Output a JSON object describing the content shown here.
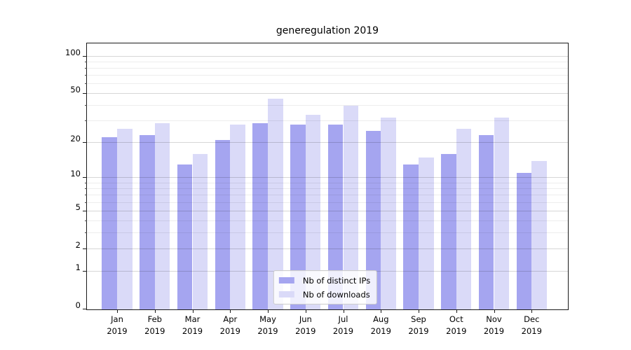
{
  "title": "generegulation 2019",
  "chart_data": {
    "type": "bar",
    "title": "generegulation 2019",
    "categories": [
      "Jan",
      "Feb",
      "Mar",
      "Apr",
      "May",
      "Jun",
      "Jul",
      "Aug",
      "Sep",
      "Oct",
      "Nov",
      "Dec"
    ],
    "category_year": "2019",
    "series": [
      {
        "name": "Nb of distinct IPs",
        "color": "#a5a5f0",
        "values": [
          22,
          23,
          13,
          21,
          29,
          28,
          28,
          25,
          13,
          16,
          23,
          11
        ]
      },
      {
        "name": "Nb of downloads",
        "color": "#dadaf8",
        "values": [
          26,
          29,
          16,
          28,
          46,
          34,
          40,
          32,
          15,
          26,
          32,
          14
        ]
      }
    ],
    "yscale": "log1p",
    "ylim": [
      0,
      127
    ],
    "yticks_major": [
      0,
      1,
      2,
      5,
      10,
      20,
      50,
      100
    ],
    "yticks_minor": [
      3,
      4,
      6,
      7,
      8,
      9,
      30,
      40,
      60,
      70,
      80,
      90
    ],
    "grid": "both",
    "legend_position": "lower center",
    "colors": {
      "grid_major": "rgba(0,0,0,0.16)",
      "grid_minor": "rgba(0,0,0,0.07)",
      "axis": "#1a1a1a",
      "background": "#ffffff"
    }
  }
}
